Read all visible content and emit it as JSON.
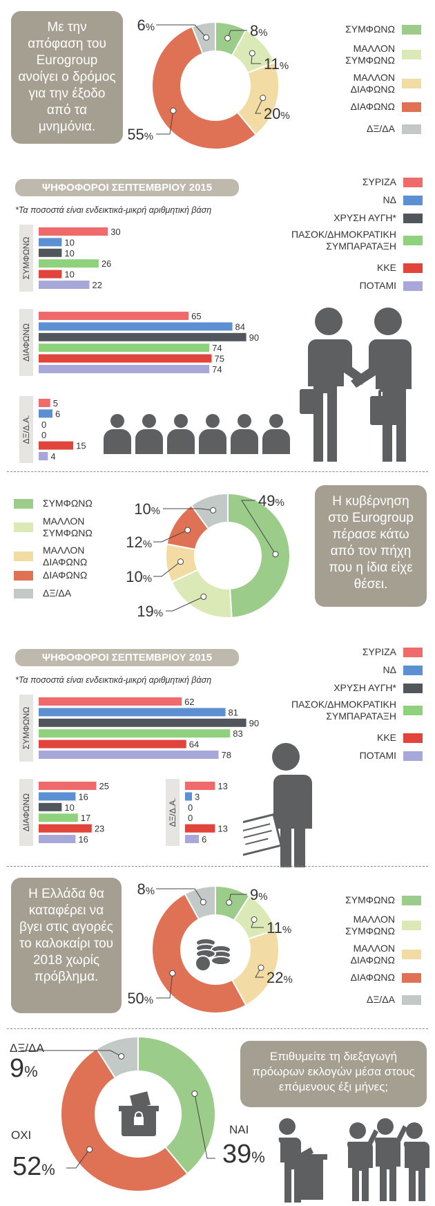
{
  "colors": {
    "agree": "#9bcc8a",
    "rather_agree": "#dbe9b6",
    "rather_disagree": "#f2dca3",
    "disagree": "#df7154",
    "dk": "#c2c9c6",
    "syriza": "#ef6b6b",
    "nd": "#5d8fd3",
    "xa": "#51555c",
    "pasok": "#8fd17d",
    "kke": "#e0443a",
    "potami": "#a8a7da",
    "bubble": "#a59f91",
    "icon": "#5d5f60"
  },
  "legend_opinion": [
    "ΣΥΜΦΩΝΩ",
    "ΜΑΛΛΟΝ ΣΥΜΦΩΝΩ",
    "ΜΑΛΛΟΝ ΔΙΑΦΩΝΩ",
    "ΔΙΑΦΩΝΩ",
    "ΔΞ/ΔΑ"
  ],
  "legend_party": [
    "ΣΥΡΙΖΑ",
    "ΝΔ",
    "ΧΡΥΣΗ ΑΥΓΗ*",
    "ΠΑΣΟΚ/ΔΗΜΟΚΡΑΤΙΚΗ ΣΥΜΠΑΡΑΤΑΞΗ",
    "ΚΚΕ",
    "ΠΟΤΑΜΙ"
  ],
  "voters_title": "ΨΗΦΟΦΟΡΟΙ ΣΕΠΤΕΜΒΡΙΟΥ 2015",
  "voters_note": "*Τα ποσοστά είναι ενδεικτικά-μικρή αριθμητική βάση",
  "q1": {
    "question": "Με την απόφαση του Eurogroup ανοίγει ο δρόμος για την έξοδο από τα μνημόνια."
  },
  "q2": {
    "question": "Η κυβέρνηση στο Eurogroup πέρασε κάτω από τον πήχη που η ίδια είχε θέσει."
  },
  "q3": {
    "question": "Η Ελλάδα θα καταφέρει να βγει στις αγορές το καλοκαίρι του 2018 χωρίς πρόβλημα."
  },
  "q4": {
    "question": "Επιθυμείτε τη διεξαγωγή πρόωρων εκλογών μέσα στους επόμενους έξι μήνες;"
  },
  "chart_data": [
    {
      "type": "pie",
      "categories": [
        "ΣΥΜΦΩΝΩ",
        "ΜΑΛΛΟΝ ΣΥΜΦΩΝΩ",
        "ΜΑΛΛΟΝ ΔΙΑΦΩΝΩ",
        "ΔΙΑΦΩΝΩ",
        "ΔΞ/ΔΑ"
      ],
      "values": [
        8,
        11,
        20,
        55,
        6
      ],
      "labels": [
        "8",
        "11",
        "20",
        "55",
        "6"
      ]
    },
    {
      "type": "bar",
      "group": "ΣΥΜΦΩΝΩ",
      "categories": [
        "ΣΥΡΙΖΑ",
        "ΝΔ",
        "ΧΡΥΣΗ ΑΥΓΗ*",
        "ΠΑΣΟΚ/ΔΗΜΟΚΡΑΤΙΚΗ ΣΥΜΠΑΡΑΤΑΞΗ",
        "ΚΚΕ",
        "ΠΟΤΑΜΙ"
      ],
      "values": [
        30,
        10,
        10,
        26,
        10,
        22
      ],
      "xlim": [
        0,
        100
      ]
    },
    {
      "type": "bar",
      "group": "ΔΙΑΦΩΝΩ",
      "categories": [
        "ΣΥΡΙΖΑ",
        "ΝΔ",
        "ΧΡΥΣΗ ΑΥΓΗ*",
        "ΠΑΣΟΚ/ΔΗΜΟΚΡΑΤΙΚΗ ΣΥΜΠΑΡΑΤΑΞΗ",
        "ΚΚΕ",
        "ΠΟΤΑΜΙ"
      ],
      "values": [
        65,
        84,
        90,
        74,
        75,
        74
      ],
      "xlim": [
        0,
        100
      ]
    },
    {
      "type": "bar",
      "group": "ΔΞ/Δ.Α.",
      "categories": [
        "ΣΥΡΙΖΑ",
        "ΝΔ",
        "ΧΡΥΣΗ ΑΥΓΗ*",
        "ΠΑΣΟΚ/ΔΗΜΟΚΡΑΤΙΚΗ ΣΥΜΠΑΡΑΤΑΞΗ",
        "ΚΚΕ",
        "ΠΟΤΑΜΙ"
      ],
      "values": [
        5,
        6,
        0,
        0,
        15,
        4
      ],
      "xlim": [
        0,
        100
      ]
    },
    {
      "type": "pie",
      "categories": [
        "ΣΥΜΦΩΝΩ",
        "ΜΑΛΛΟΝ ΣΥΜΦΩΝΩ",
        "ΜΑΛΛΟΝ ΔΙΑΦΩΝΩ",
        "ΔΙΑΦΩΝΩ",
        "ΔΞ/ΔΑ"
      ],
      "values": [
        49,
        19,
        10,
        12,
        10
      ],
      "labels": [
        "49",
        "19",
        "10",
        "12",
        "10"
      ]
    },
    {
      "type": "bar",
      "group": "ΣΥΜΦΩΝΩ",
      "categories": [
        "ΣΥΡΙΖΑ",
        "ΝΔ",
        "ΧΡΥΣΗ ΑΥΓΗ*",
        "ΠΑΣΟΚ/ΔΗΜΟΚΡΑΤΙΚΗ ΣΥΜΠΑΡΑΤΑΞΗ",
        "ΚΚΕ",
        "ΠΟΤΑΜΙ"
      ],
      "values": [
        62,
        81,
        90,
        83,
        64,
        78
      ],
      "xlim": [
        0,
        100
      ]
    },
    {
      "type": "bar",
      "group": "ΔΙΑΦΩΝΩ",
      "categories": [
        "ΣΥΡΙΖΑ",
        "ΝΔ",
        "ΧΡΥΣΗ ΑΥΓΗ*",
        "ΠΑΣΟΚ/ΔΗΜΟΚΡΑΤΙΚΗ ΣΥΜΠΑΡΑΤΑΞΗ",
        "ΚΚΕ",
        "ΠΟΤΑΜΙ"
      ],
      "values": [
        25,
        16,
        10,
        17,
        23,
        16
      ],
      "xlim": [
        0,
        100
      ]
    },
    {
      "type": "bar",
      "group": "ΔΞ/Δ.Α.",
      "categories": [
        "ΣΥΡΙΖΑ",
        "ΝΔ",
        "ΧΡΥΣΗ ΑΥΓΗ*",
        "ΠΑΣΟΚ/ΔΗΜΟΚΡΑΤΙΚΗ ΣΥΜΠΑΡΑΤΑΞΗ",
        "ΚΚΕ",
        "ΠΟΤΑΜΙ"
      ],
      "values": [
        13,
        3,
        0,
        0,
        13,
        6
      ],
      "xlim": [
        0,
        100
      ]
    },
    {
      "type": "pie",
      "categories": [
        "ΣΥΜΦΩΝΩ",
        "ΜΑΛΛΟΝ ΣΥΜΦΩΝΩ",
        "ΜΑΛΛΟΝ ΔΙΑΦΩΝΩ",
        "ΔΙΑΦΩΝΩ",
        "ΔΞ/ΔΑ"
      ],
      "values": [
        9,
        11,
        22,
        50,
        8
      ],
      "labels": [
        "9",
        "11",
        "22",
        "50",
        "8"
      ]
    },
    {
      "type": "pie",
      "categories": [
        "ΝΑΙ",
        "ΟΧΙ",
        "ΔΞ/ΔΑ"
      ],
      "values": [
        39,
        52,
        9
      ],
      "labels": [
        "39",
        "52",
        "9"
      ]
    }
  ]
}
